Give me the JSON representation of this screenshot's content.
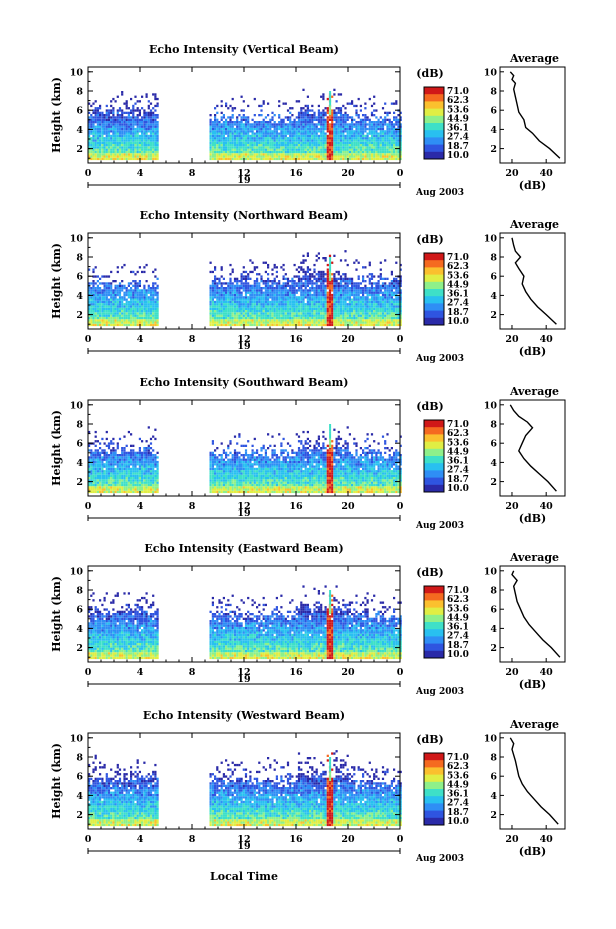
{
  "figure": {
    "x_axis_label": "Local Time",
    "date_label": "Aug 2003",
    "day_label": "19",
    "y_axis_label": "Height (km)",
    "average_title": "Average",
    "average_xlabel": "(dB)",
    "colorbar_unit": "(dB)",
    "colorbar_ticks": [
      "71.0",
      "62.3",
      "53.6",
      "44.9",
      "36.1",
      "27.4",
      "18.7",
      "10.0"
    ],
    "colors": {
      "cmap": [
        "#2a2aa8",
        "#2f55e0",
        "#2f8ef5",
        "#29c0f0",
        "#3ee0c8",
        "#8ef08a",
        "#e0ee44",
        "#fbc02e",
        "#f56a20",
        "#d01818"
      ]
    }
  },
  "chart_data": [
    {
      "type": "heatmap",
      "title": "Echo Intensity (Vertical Beam)",
      "xlabel": "Local Time",
      "ylabel": "Height (km)",
      "x_ticks": [
        "0",
        "4",
        "8",
        "12",
        "16",
        "20",
        "0"
      ],
      "y_ticks": [
        "2",
        "4",
        "6",
        "8",
        "10"
      ],
      "xlim": [
        0,
        24
      ],
      "ylim": [
        0.5,
        10.5
      ],
      "zlim": [
        10.0,
        71.0
      ],
      "gap_hours": [
        5.3,
        9.3
      ],
      "spike_hour": 18.6,
      "top_km_before_gap": 5.8,
      "top_km_after_gap": 5.0,
      "average_profile": {
        "type": "line",
        "title": "Average",
        "xlabel": "(dB)",
        "ylabel": "Height (km)",
        "xlim": [
          13,
          51
        ],
        "ylim": [
          0.5,
          10.5
        ],
        "x_ticks": [
          "20",
          "40"
        ],
        "y_ticks": [
          "2",
          "4",
          "6",
          "8",
          "10"
        ],
        "x": [
          48,
          42,
          36,
          32,
          28,
          27,
          24,
          23,
          22,
          21,
          22,
          20,
          21,
          19
        ],
        "y": [
          1.0,
          2.0,
          2.8,
          3.6,
          4.2,
          5.0,
          5.8,
          6.6,
          7.4,
          8.2,
          8.8,
          9.2,
          9.6,
          10.0
        ]
      }
    },
    {
      "type": "heatmap",
      "title": "Echo Intensity (Northward Beam)",
      "xlabel": "Local Time",
      "ylabel": "Height (km)",
      "x_ticks": [
        "0",
        "4",
        "8",
        "12",
        "16",
        "20",
        "0"
      ],
      "y_ticks": [
        "2",
        "4",
        "6",
        "8",
        "10"
      ],
      "xlim": [
        0,
        24
      ],
      "ylim": [
        0.5,
        10.5
      ],
      "zlim": [
        10.0,
        71.0
      ],
      "gap_hours": [
        5.3,
        9.3
      ],
      "spike_hour": 18.6,
      "top_km_before_gap": 5.0,
      "top_km_after_gap": 5.4,
      "average_profile": {
        "type": "line",
        "title": "Average",
        "xlabel": "(dB)",
        "ylabel": "Height (km)",
        "xlim": [
          13,
          51
        ],
        "ylim": [
          0.5,
          10.5
        ],
        "x_ticks": [
          "20",
          "40"
        ],
        "y_ticks": [
          "2",
          "4",
          "6",
          "8",
          "10"
        ],
        "x": [
          46,
          40,
          35,
          31,
          28,
          26,
          27,
          24,
          22,
          25,
          22,
          21,
          20
        ],
        "y": [
          1.0,
          2.0,
          2.8,
          3.6,
          4.4,
          5.2,
          6.0,
          6.8,
          7.4,
          8.0,
          8.6,
          9.2,
          10.0
        ]
      }
    },
    {
      "type": "heatmap",
      "title": "Echo Intensity (Southward Beam)",
      "xlabel": "Local Time",
      "ylabel": "Height (km)",
      "x_ticks": [
        "0",
        "4",
        "8",
        "12",
        "16",
        "20",
        "0"
      ],
      "y_ticks": [
        "2",
        "4",
        "6",
        "8",
        "10"
      ],
      "xlim": [
        0,
        24
      ],
      "ylim": [
        0.5,
        10.5
      ],
      "zlim": [
        10.0,
        71.0
      ],
      "gap_hours": [
        5.3,
        9.3
      ],
      "spike_hour": 18.6,
      "top_km_before_gap": 5.2,
      "top_km_after_gap": 4.8,
      "average_profile": {
        "type": "line",
        "title": "Average",
        "xlabel": "(dB)",
        "ylabel": "Height (km)",
        "xlim": [
          13,
          51
        ],
        "ylim": [
          0.5,
          10.5
        ],
        "x_ticks": [
          "20",
          "40"
        ],
        "y_ticks": [
          "2",
          "4",
          "6",
          "8",
          "10"
        ],
        "x": [
          46,
          41,
          36,
          31,
          27,
          24,
          26,
          28,
          32,
          29,
          24,
          21,
          19
        ],
        "y": [
          1.0,
          2.0,
          2.8,
          3.6,
          4.4,
          5.2,
          6.0,
          6.8,
          7.6,
          8.2,
          8.8,
          9.4,
          10.0
        ]
      }
    },
    {
      "type": "heatmap",
      "title": "Echo Intensity (Eastward Beam)",
      "xlabel": "Local Time",
      "ylabel": "Height (km)",
      "x_ticks": [
        "0",
        "4",
        "8",
        "12",
        "16",
        "20",
        "0"
      ],
      "y_ticks": [
        "2",
        "4",
        "6",
        "8",
        "10"
      ],
      "xlim": [
        0,
        24
      ],
      "ylim": [
        0.5,
        10.5
      ],
      "zlim": [
        10.0,
        71.0
      ],
      "gap_hours": [
        5.3,
        9.3
      ],
      "spike_hour": 18.6,
      "top_km_before_gap": 5.6,
      "top_km_after_gap": 5.2,
      "average_profile": {
        "type": "line",
        "title": "Average",
        "xlabel": "(dB)",
        "ylabel": "Height (km)",
        "xlim": [
          13,
          51
        ],
        "ylim": [
          0.5,
          10.5
        ],
        "x_ticks": [
          "20",
          "40"
        ],
        "y_ticks": [
          "2",
          "4",
          "6",
          "8",
          "10"
        ],
        "x": [
          48,
          43,
          38,
          34,
          30,
          27,
          25,
          23,
          22,
          21,
          23,
          20,
          21
        ],
        "y": [
          1.0,
          2.0,
          2.8,
          3.6,
          4.4,
          5.2,
          6.0,
          6.8,
          7.6,
          8.4,
          9.0,
          9.6,
          10.0
        ]
      }
    },
    {
      "type": "heatmap",
      "title": "Echo Intensity (Westward Beam)",
      "xlabel": "Local Time",
      "ylabel": "Height (km)",
      "x_ticks": [
        "0",
        "4",
        "8",
        "12",
        "16",
        "20",
        "0"
      ],
      "y_ticks": [
        "2",
        "4",
        "6",
        "8",
        "10"
      ],
      "xlim": [
        0,
        24
      ],
      "ylim": [
        0.5,
        10.5
      ],
      "zlim": [
        10.0,
        71.0
      ],
      "gap_hours": [
        5.3,
        9.3
      ],
      "spike_hour": 18.6,
      "top_km_before_gap": 5.8,
      "top_km_after_gap": 5.4,
      "average_profile": {
        "type": "line",
        "title": "Average",
        "xlabel": "(dB)",
        "ylabel": "Height (km)",
        "xlim": [
          13,
          51
        ],
        "ylim": [
          0.5,
          10.5
        ],
        "x_ticks": [
          "20",
          "40"
        ],
        "y_ticks": [
          "2",
          "4",
          "6",
          "8",
          "10"
        ],
        "x": [
          47,
          42,
          37,
          33,
          29,
          26,
          24,
          23,
          22,
          21,
          20,
          21,
          19
        ],
        "y": [
          1.0,
          2.0,
          2.8,
          3.6,
          4.4,
          5.2,
          6.0,
          6.8,
          7.6,
          8.2,
          8.8,
          9.4,
          10.0
        ]
      }
    }
  ]
}
